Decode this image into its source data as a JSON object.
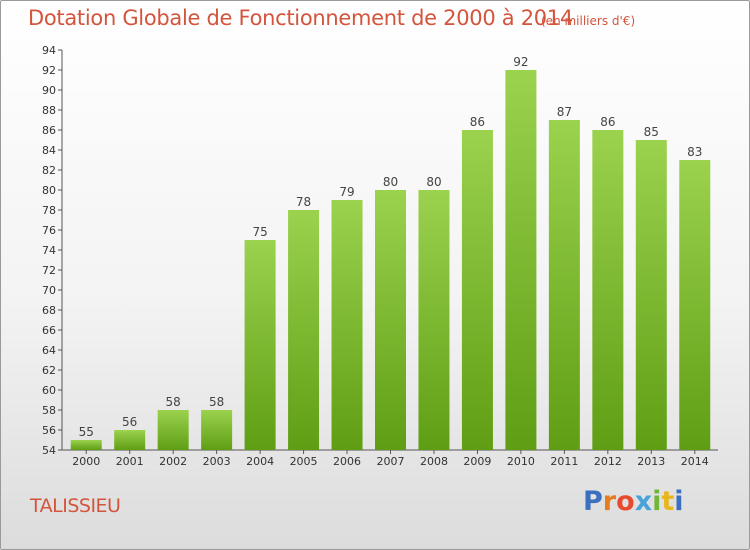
{
  "title": "Dotation Globale de Fonctionnement de 2000 à 2014",
  "subtitle": "(en milliers d'€)",
  "commune": "TALISSIEU",
  "logo": {
    "text": "Proxiti",
    "letter_colors": [
      "#3b6fc0",
      "#e87b1e",
      "#e84a2e",
      "#4aa3d8",
      "#6fb63a",
      "#e8b71e",
      "#3b6fc0"
    ]
  },
  "colors": {
    "bar_top": "#9bd24e",
    "bar_bottom": "#5f9e14",
    "text_accent": "#d4543c"
  },
  "chart_data": {
    "type": "bar",
    "categories": [
      "2000",
      "2001",
      "2002",
      "2003",
      "2004",
      "2005",
      "2006",
      "2007",
      "2008",
      "2009",
      "2010",
      "2011",
      "2012",
      "2013",
      "2014"
    ],
    "values": [
      55,
      56,
      58,
      58,
      75,
      78,
      79,
      80,
      80,
      86,
      92,
      87,
      86,
      85,
      83
    ],
    "ylim": [
      54,
      94
    ],
    "yticks": [
      54,
      56,
      58,
      60,
      62,
      64,
      66,
      68,
      70,
      72,
      74,
      76,
      78,
      80,
      82,
      84,
      86,
      88,
      90,
      92,
      94
    ],
    "grid": false
  }
}
